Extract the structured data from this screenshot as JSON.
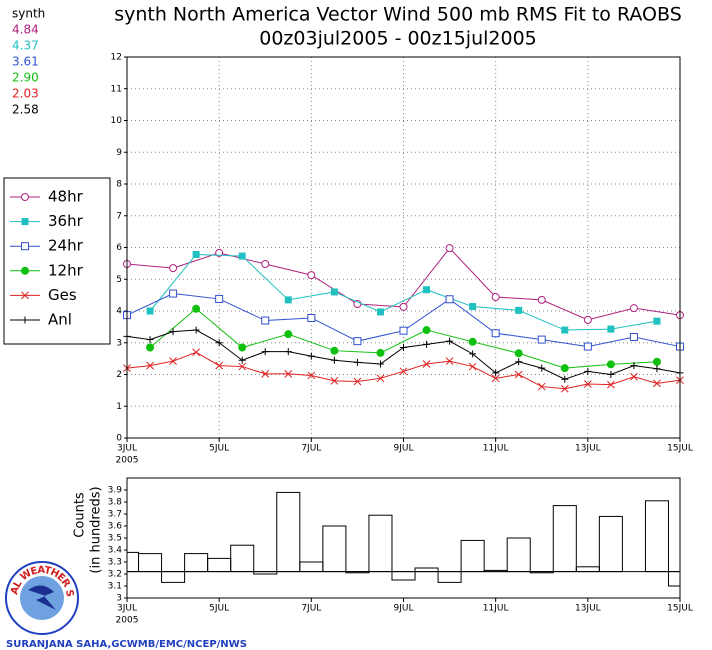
{
  "chart_data": [
    {
      "type": "line",
      "title": "synth North America Vector Wind 500 mb RMS Fit to RAOBS",
      "subtitle": "00z03jul2005 - 00z15jul2005",
      "stats_title": "synth",
      "x_year": "2005",
      "xlim": [
        3,
        15
      ],
      "xticks": [
        {
          "value": 3,
          "label": "3JUL"
        },
        {
          "value": 5,
          "label": "5JUL"
        },
        {
          "value": 7,
          "label": "7JUL"
        },
        {
          "value": 9,
          "label": "9JUL"
        },
        {
          "value": 11,
          "label": "11JUL"
        },
        {
          "value": 13,
          "label": "13JUL"
        },
        {
          "value": 15,
          "label": "15JUL"
        }
      ],
      "ylim": [
        0,
        12
      ],
      "yticks": [
        0,
        1,
        2,
        3,
        4,
        5,
        6,
        7,
        8,
        9,
        10,
        11,
        12
      ],
      "grid": true,
      "series": [
        {
          "name": "48hr",
          "mean": "4.84",
          "color": "#b0207f",
          "marker": "circle-open",
          "x": [
            3,
            4,
            5,
            6,
            7,
            8,
            9,
            10,
            11,
            12,
            13,
            14,
            15
          ],
          "values": [
            5.48,
            5.35,
            5.83,
            5.48,
            5.13,
            4.22,
            4.13,
            5.98,
            4.44,
            4.35,
            3.72,
            4.09,
            3.87
          ]
        },
        {
          "name": "36hr",
          "mean": "4.37",
          "color": "#20c0c0",
          "marker": "square",
          "x": [
            3.5,
            4.5,
            5.5,
            6.5,
            7.5,
            8.5,
            9.5,
            10.5,
            11.5,
            12.5,
            13.5,
            14.5
          ],
          "values": [
            4.0,
            5.78,
            5.73,
            4.35,
            4.6,
            3.97,
            4.67,
            4.14,
            4.02,
            3.4,
            3.43,
            3.68
          ]
        },
        {
          "name": "24hr",
          "mean": "3.61",
          "color": "#3050d0",
          "marker": "square-open",
          "x": [
            3,
            4,
            5,
            6,
            7,
            8,
            9,
            10,
            11,
            12,
            13,
            14,
            15
          ],
          "values": [
            3.87,
            4.55,
            4.38,
            3.7,
            3.78,
            3.05,
            3.38,
            4.37,
            3.3,
            3.1,
            2.88,
            3.18,
            2.88
          ]
        },
        {
          "name": "12hr",
          "mean": "2.90",
          "color": "#10c010",
          "marker": "circle",
          "x": [
            3.5,
            4.5,
            5.5,
            6.5,
            7.5,
            8.5,
            9.5,
            10.5,
            11.5,
            12.5,
            13.5,
            14.5
          ],
          "values": [
            2.85,
            4.07,
            2.85,
            3.27,
            2.75,
            2.68,
            3.4,
            3.03,
            2.67,
            2.2,
            2.32,
            2.4
          ]
        },
        {
          "name": "Ges",
          "mean": "2.03",
          "color": "#e02020",
          "marker": "x",
          "x": [
            3,
            3.5,
            4,
            4.5,
            5,
            5.5,
            6,
            6.5,
            7,
            7.5,
            8,
            8.5,
            9,
            9.5,
            10,
            10.5,
            11,
            11.5,
            12,
            12.5,
            13,
            13.5,
            14,
            14.5,
            15
          ],
          "values": [
            2.2,
            2.28,
            2.42,
            2.7,
            2.28,
            2.25,
            2.02,
            2.02,
            1.97,
            1.8,
            1.78,
            1.88,
            2.1,
            2.33,
            2.42,
            2.25,
            1.88,
            2.0,
            1.62,
            1.55,
            1.7,
            1.68,
            1.93,
            1.72,
            1.82
          ]
        },
        {
          "name": "Anl",
          "mean": "2.58",
          "color": "#000000",
          "marker": "plus",
          "x": [
            3,
            3.5,
            4,
            4.5,
            5,
            5.5,
            6,
            6.5,
            7,
            7.5,
            8,
            8.5,
            9,
            9.5,
            10,
            10.5,
            11,
            11.5,
            12,
            12.5,
            13,
            13.5,
            14,
            14.5,
            15
          ],
          "values": [
            3.2,
            3.1,
            3.35,
            3.4,
            3.0,
            2.45,
            2.72,
            2.72,
            2.58,
            2.45,
            2.38,
            2.33,
            2.85,
            2.95,
            3.05,
            2.65,
            2.05,
            2.4,
            2.2,
            1.85,
            2.1,
            2.0,
            2.28,
            2.18,
            2.05
          ]
        }
      ]
    },
    {
      "type": "bar",
      "y_label": "Counts",
      "y_label2": "(in hundreds)",
      "x_year": "2005",
      "credit": "SURANJANA SAHA,GCWMB/EMC/NCEP/NWS",
      "logo_text": "NATIONAL WEATHER SERVICE",
      "xlim": [
        3,
        15
      ],
      "xticks": [
        {
          "value": 3,
          "label": "3JUL"
        },
        {
          "value": 5,
          "label": "5JUL"
        },
        {
          "value": 7,
          "label": "7JUL"
        },
        {
          "value": 9,
          "label": "9JUL"
        },
        {
          "value": 11,
          "label": "11JUL"
        },
        {
          "value": 13,
          "label": "13JUL"
        },
        {
          "value": 15,
          "label": "15JUL"
        }
      ],
      "ylim": [
        3,
        4
      ],
      "yticks": [
        3,
        3.1,
        3.2,
        3.3,
        3.4,
        3.5,
        3.6,
        3.7,
        3.8,
        3.9
      ],
      "baseline": 3.22,
      "bar_width": 0.5,
      "color": "#000000",
      "x": [
        3,
        3.5,
        4,
        4.5,
        5,
        5.5,
        6,
        6.5,
        7,
        7.5,
        8,
        8.5,
        9,
        9.5,
        10,
        10.5,
        11,
        11.5,
        12,
        12.5,
        13,
        13.5,
        14,
        14.5,
        15
      ],
      "values": [
        3.38,
        3.37,
        3.13,
        3.37,
        3.33,
        3.44,
        3.2,
        3.88,
        3.3,
        3.6,
        3.21,
        3.69,
        3.15,
        3.25,
        3.13,
        3.48,
        3.23,
        3.5,
        3.21,
        3.77,
        3.26,
        3.68,
        3.22,
        3.81,
        3.1
      ]
    }
  ]
}
